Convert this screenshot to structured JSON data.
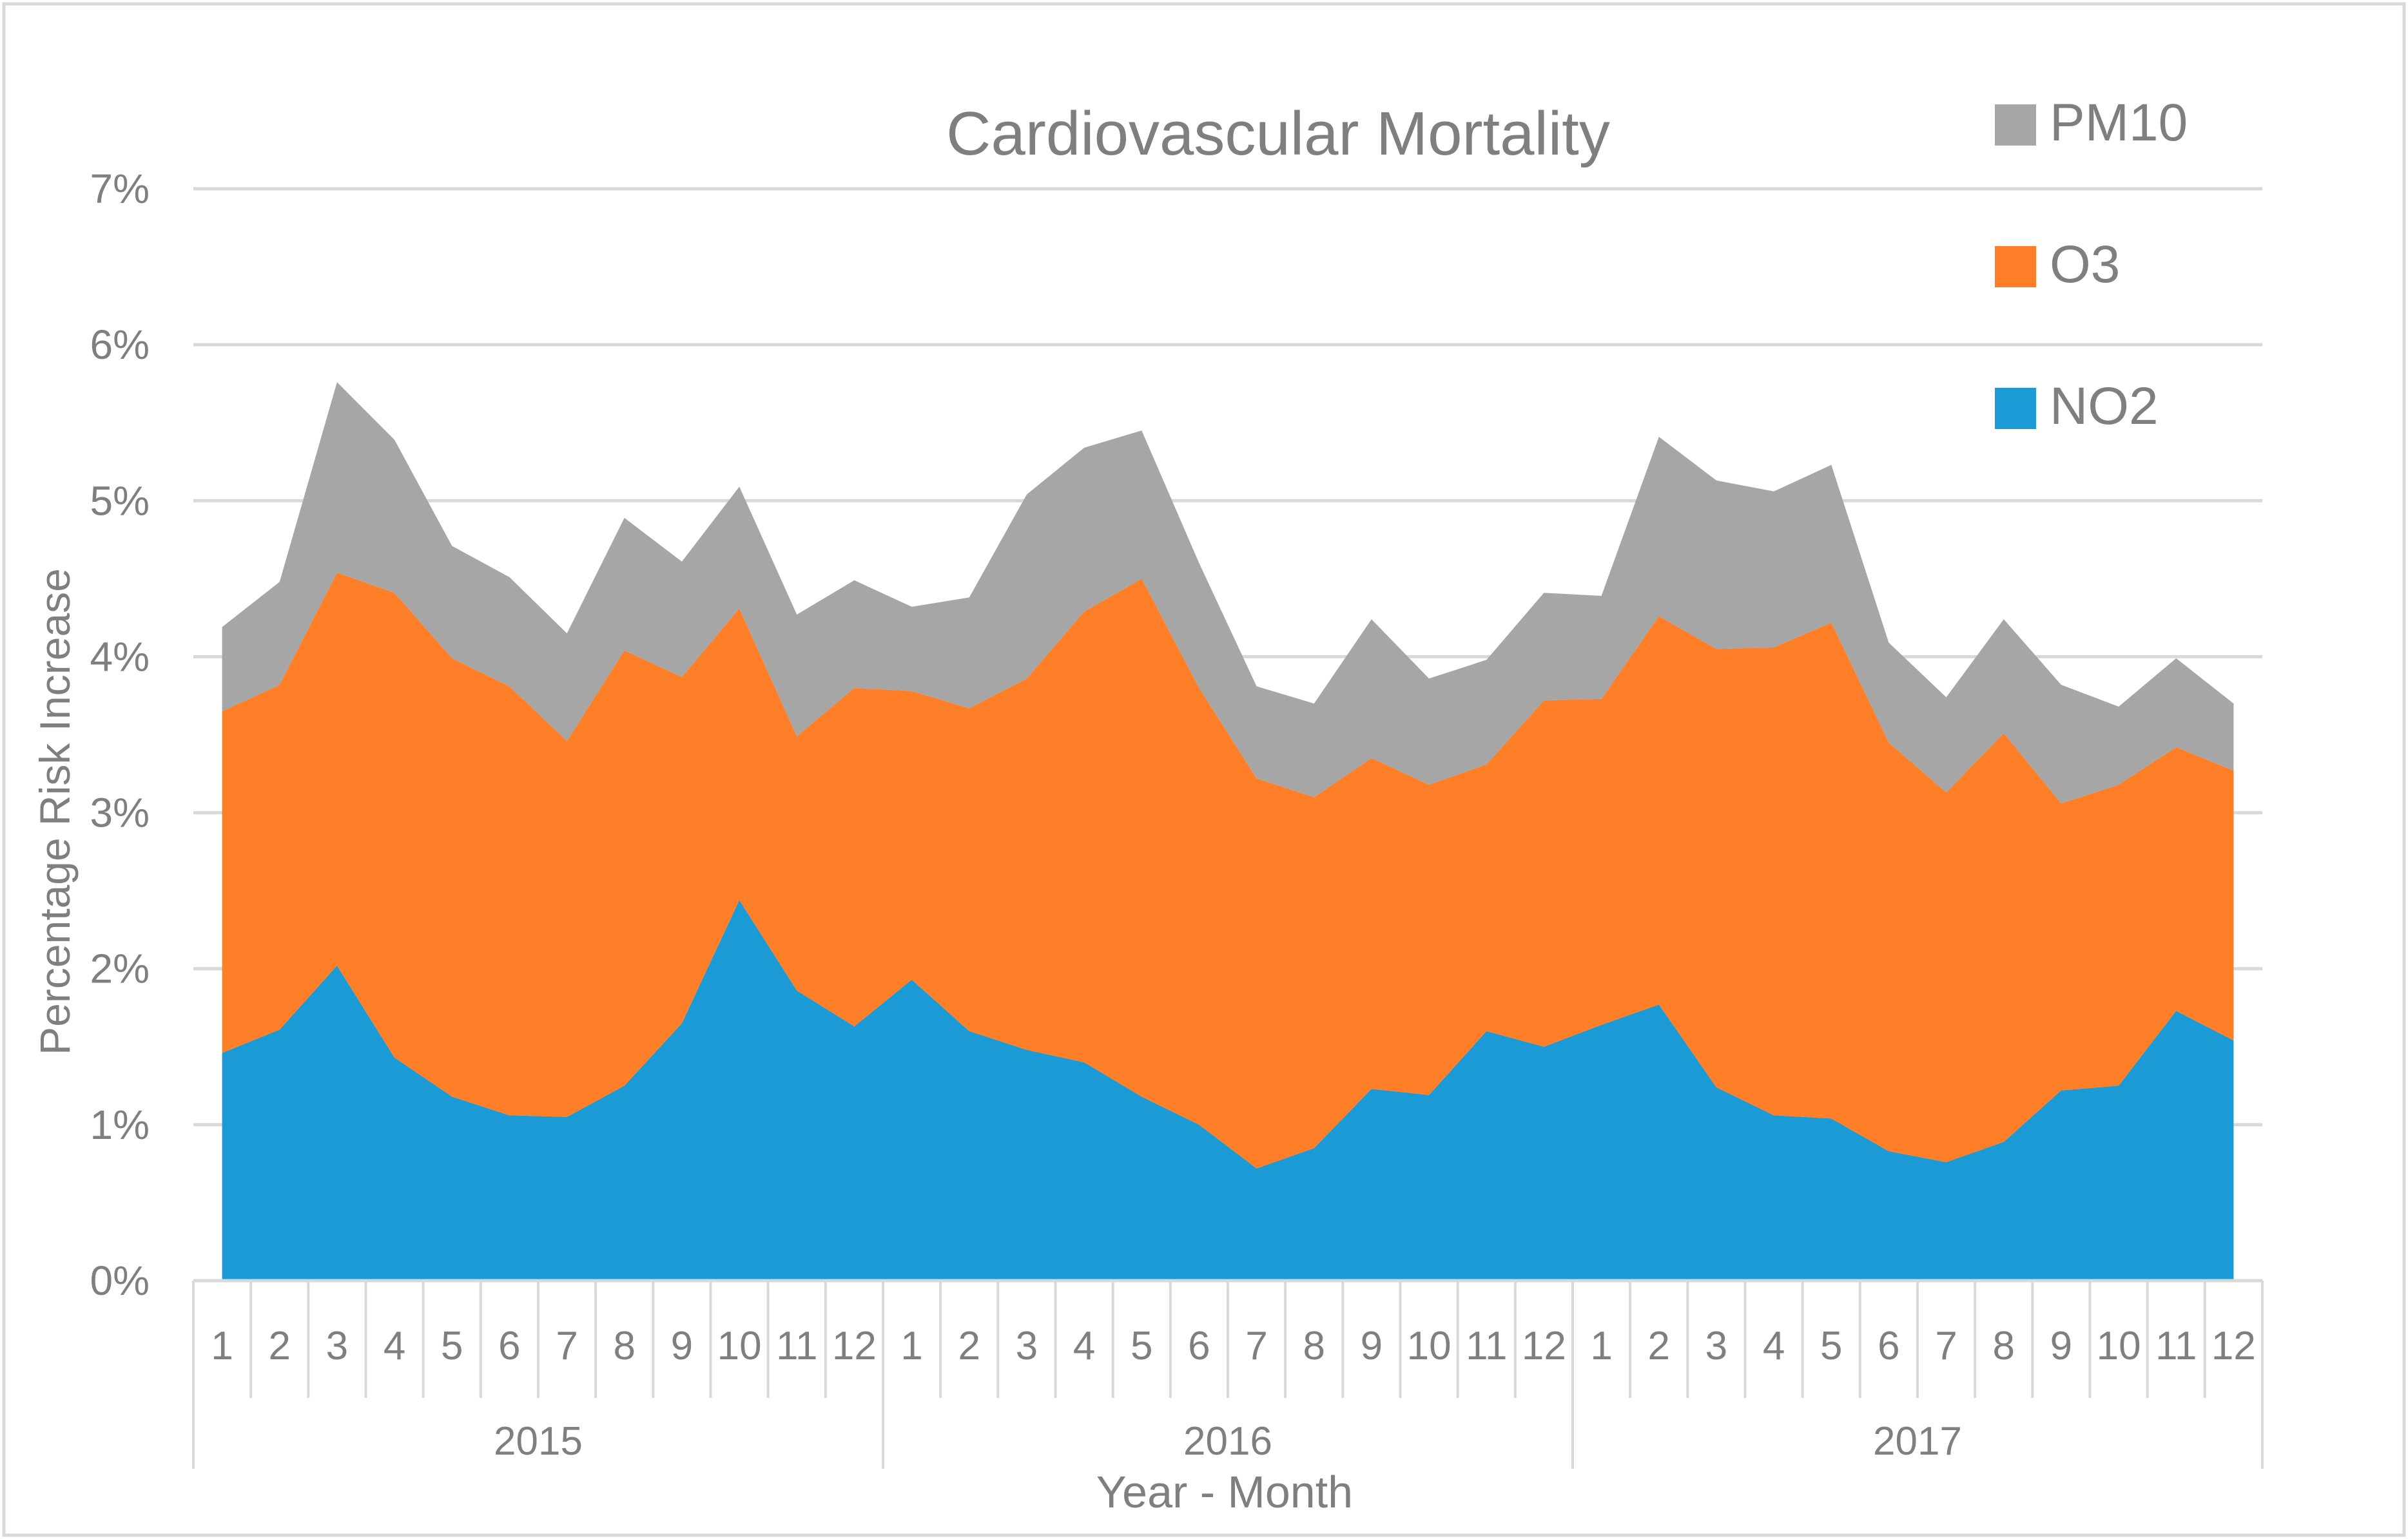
{
  "chart_data": {
    "type": "area",
    "stacked": true,
    "title": "Cardiovascular Mortality",
    "xlabel": "Year - Month",
    "ylabel": "Percentage Risk Increase",
    "ylim": [
      0,
      7
    ],
    "yticks": [
      "0%",
      "1%",
      "2%",
      "3%",
      "4%",
      "5%",
      "6%",
      "7%"
    ],
    "grid": true,
    "legend_position": "top-right",
    "years": [
      {
        "label": "2015",
        "months": [
          "1",
          "2",
          "3",
          "4",
          "5",
          "6",
          "7",
          "8",
          "9",
          "10",
          "11",
          "12"
        ]
      },
      {
        "label": "2016",
        "months": [
          "1",
          "2",
          "3",
          "4",
          "5",
          "6",
          "7",
          "8",
          "9",
          "10",
          "11",
          "12"
        ]
      },
      {
        "label": "2017",
        "months": [
          "1",
          "2",
          "3",
          "4",
          "5",
          "6",
          "7",
          "8",
          "9",
          "10",
          "11",
          "12"
        ]
      }
    ],
    "series": [
      {
        "name": "NO2",
        "color": "#1c9ad6",
        "values": [
          1.46,
          1.61,
          2.02,
          1.43,
          1.18,
          1.06,
          1.05,
          1.25,
          1.65,
          2.44,
          1.86,
          1.63,
          1.93,
          1.6,
          1.48,
          1.4,
          1.18,
          1.0,
          0.72,
          0.85,
          1.23,
          1.19,
          1.6,
          1.5,
          1.64,
          1.77,
          1.24,
          1.06,
          1.04,
          0.83,
          0.76,
          0.89,
          1.22,
          1.25,
          1.73,
          1.54
        ]
      },
      {
        "name": "O3",
        "color": "#fe7f27",
        "values": [
          2.19,
          2.21,
          2.52,
          2.98,
          2.81,
          2.75,
          2.41,
          2.79,
          2.22,
          1.87,
          1.63,
          2.17,
          1.85,
          2.07,
          2.38,
          2.89,
          3.32,
          2.8,
          2.5,
          2.25,
          2.12,
          1.99,
          1.71,
          2.22,
          2.09,
          2.49,
          2.81,
          3.0,
          3.18,
          2.62,
          2.37,
          2.62,
          1.84,
          1.93,
          1.69,
          1.73
        ]
      },
      {
        "name": "PM10",
        "color": "#a6a6a6",
        "values": [
          0.54,
          0.66,
          1.22,
          0.98,
          0.72,
          0.7,
          0.69,
          0.85,
          0.74,
          0.78,
          0.78,
          0.69,
          0.54,
          0.71,
          1.18,
          1.05,
          0.95,
          0.8,
          0.59,
          0.6,
          0.89,
          0.68,
          0.67,
          0.69,
          0.66,
          1.15,
          1.08,
          1.0,
          1.01,
          0.64,
          0.61,
          0.73,
          0.76,
          0.5,
          0.57,
          0.43
        ]
      }
    ],
    "axis_color": "#d9d9d9",
    "text_color": "#7f7f7f"
  }
}
